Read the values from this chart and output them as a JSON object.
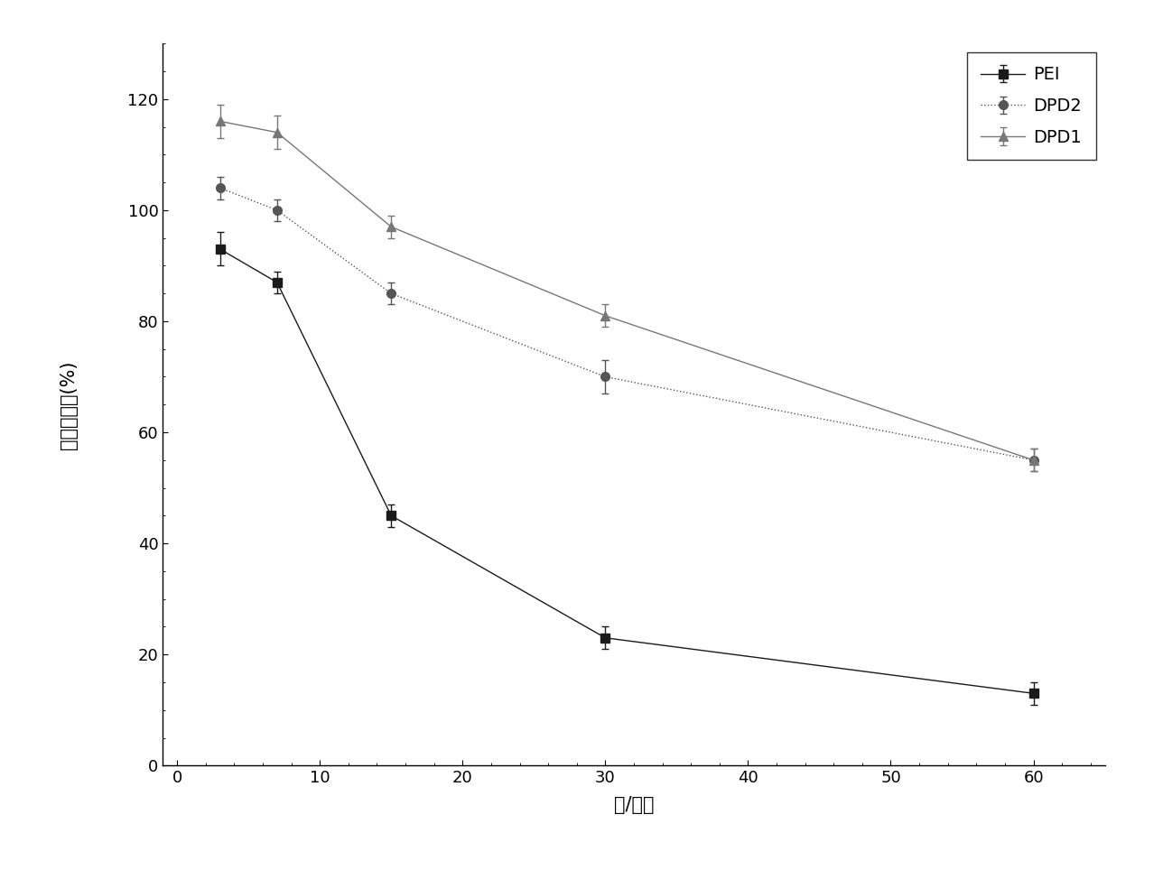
{
  "series": {
    "PEI": {
      "x": [
        3,
        7,
        15,
        30,
        60
      ],
      "y": [
        93,
        87,
        45,
        23,
        13
      ],
      "yerr": [
        3,
        2,
        2,
        2,
        2
      ],
      "color": "#1a1a1a",
      "marker": "s",
      "linestyle": "-",
      "linewidth": 1.0
    },
    "DPD2": {
      "x": [
        3,
        7,
        15,
        30,
        60
      ],
      "y": [
        104,
        100,
        85,
        70,
        55
      ],
      "yerr": [
        2,
        2,
        2,
        3,
        2
      ],
      "color": "#555555",
      "marker": "o",
      "linestyle": "dotted",
      "linewidth": 1.0
    },
    "DPD1": {
      "x": [
        3,
        7,
        15,
        30,
        60
      ],
      "y": [
        116,
        114,
        97,
        81,
        55
      ],
      "yerr": [
        3,
        3,
        2,
        2,
        2
      ],
      "color": "#777777",
      "marker": "^",
      "linestyle": "-",
      "linewidth": 1.0
    }
  },
  "xlabel": "氮/磷比",
  "ylabel": "细胞存活率(%)",
  "xlim": [
    -1,
    65
  ],
  "ylim": [
    0,
    130
  ],
  "xticks": [
    0,
    10,
    20,
    30,
    40,
    50,
    60
  ],
  "yticks": [
    0,
    20,
    40,
    60,
    80,
    100,
    120
  ],
  "legend_order": [
    "PEI",
    "DPD2",
    "DPD1"
  ],
  "background_color": "#ffffff",
  "markersize": 7,
  "capsize": 3,
  "elinewidth": 1.0,
  "tick_fontsize": 13,
  "label_fontsize": 15
}
